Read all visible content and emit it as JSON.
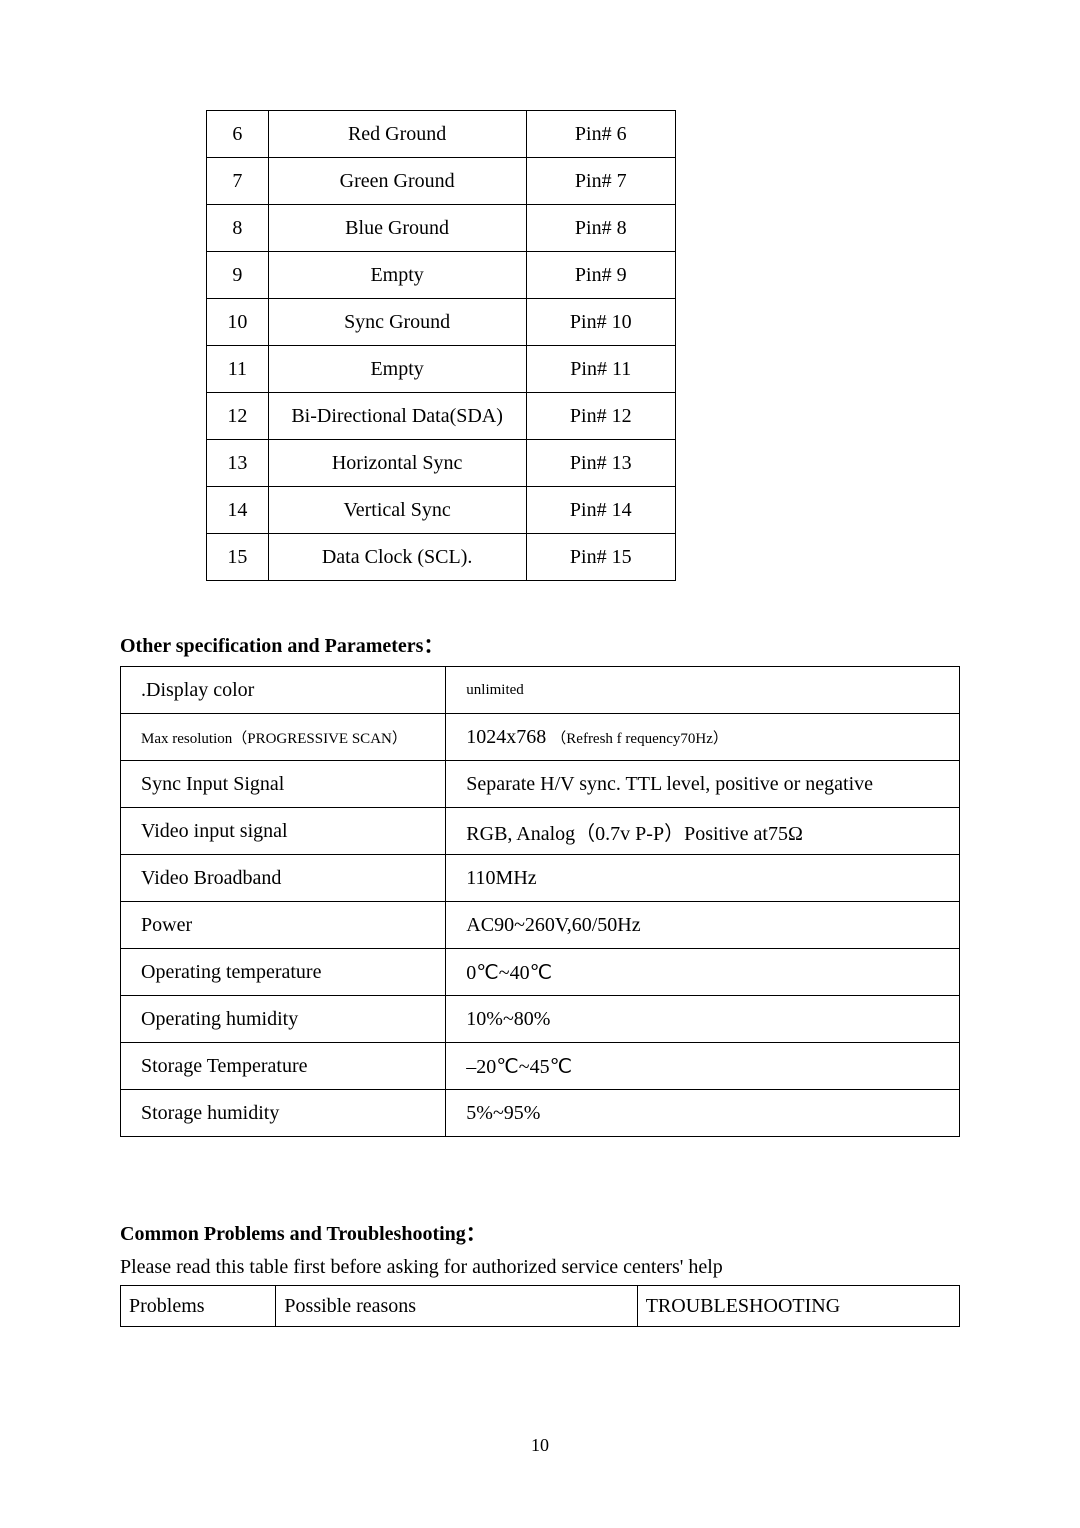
{
  "pin_table": {
    "rows": [
      {
        "n": "6",
        "sig": "Red Ground",
        "pin": "Pin# 6",
        "smallSig": false
      },
      {
        "n": "7",
        "sig": "Green Ground",
        "pin": "Pin# 7",
        "smallSig": false
      },
      {
        "n": "8",
        "sig": "Blue Ground",
        "pin": "Pin# 8",
        "smallSig": false
      },
      {
        "n": "9",
        "sig": "Empty",
        "pin": "Pin# 9",
        "smallSig": false
      },
      {
        "n": "10",
        "sig": "Sync Ground",
        "pin": "Pin# 10",
        "smallSig": false
      },
      {
        "n": "11",
        "sig": "Empty",
        "pin": "Pin# 11",
        "smallSig": false
      },
      {
        "n": "12",
        "sig": "Bi-Directional Data(SDA)",
        "pin": "Pin# 12",
        "smallSig": true
      },
      {
        "n": "13",
        "sig": "Horizontal Sync",
        "pin": "Pin# 13",
        "smallSig": false
      },
      {
        "n": "14",
        "sig": "Vertical Sync",
        "pin": "Pin# 14",
        "smallSig": true
      },
      {
        "n": "15",
        "sig": "Data Clock (SCL).",
        "pin": "Pin# 15",
        "smallSig": false
      }
    ]
  },
  "spec_heading": "Other specification and Parameters：",
  "spec_table": {
    "rows": [
      {
        "l": ".Display color",
        "lsm": false,
        "r": "unlimited",
        "rsm": true
      },
      {
        "l": "Max resolution（PROGRESSIVE SCAN）",
        "lsm": true,
        "r": "1024x768 （Refresh f requency70Hz）",
        "rsm": false,
        "rCompound": true
      },
      {
        "l": "Sync Input Signal",
        "lsm": false,
        "r": "Separate H/V sync. TTL level, positive or negative",
        "rsm": false
      },
      {
        "l": "Video input signal",
        "lsm": false,
        "r": "RGB, Analog（0.7v P-P）Positive at75Ω",
        "rsm": false
      },
      {
        "l": "Video Broadband",
        "lsm": false,
        "r": "110MHz",
        "rsm": false
      },
      {
        "l": "Power",
        "lsm": false,
        "r": "AC90~260V,60/50Hz",
        "rsm": false
      },
      {
        "l": "Operating temperature",
        "lsm": false,
        "r": "0℃~40℃",
        "rsm": false
      },
      {
        "l": "Operating humidity",
        "lsm": false,
        "r": "10%~80%",
        "rsm": false
      },
      {
        "l": "Storage Temperature",
        "lsm": false,
        "r": "–20℃~45℃",
        "rsm": false
      },
      {
        "l": "Storage humidity",
        "lsm": false,
        "r": "5%~95%",
        "rsm": false
      }
    ],
    "row1_r_main": "1024x768 ",
    "row1_r_small": "（Refresh f requency70Hz）"
  },
  "trouble_heading": "Common Problems and Troubleshooting：",
  "trouble_note": "Please read this table first before asking for authorized service centers' help",
  "ts_table": {
    "h1": "Problems",
    "h2": "Possible reasons",
    "h3": "TROUBLESHOOTING"
  },
  "page_number": "10"
}
